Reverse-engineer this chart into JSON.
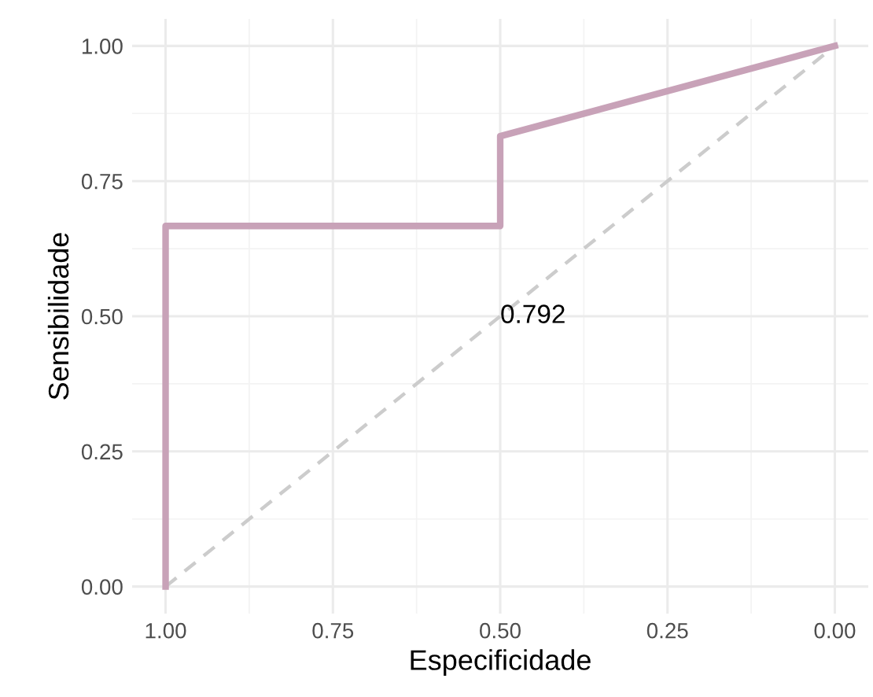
{
  "chart_data": {
    "type": "line",
    "xlabel": "Especificidade",
    "ylabel": "Sensibilidade",
    "series": [
      {
        "color": "#c8a2b8",
        "x": [
          1.0,
          1.0,
          0.5,
          0.5,
          0.0
        ],
        "values": [
          0.0,
          0.667,
          0.667,
          0.833,
          1.0
        ],
        "line_style": "solid"
      },
      {
        "color": "#cccccc",
        "x": [
          1.0,
          0.0
        ],
        "values": [
          0.0,
          1.0
        ],
        "line_style": "dashed"
      }
    ],
    "annotations": [
      {
        "text": "0.792",
        "x": 0.5,
        "y": 0.5
      }
    ],
    "xlim": [
      1.05,
      -0.05
    ],
    "ylim": [
      -0.05,
      1.05
    ],
    "xticks": [
      {
        "value": 1.0,
        "label": "1.00"
      },
      {
        "value": 0.75,
        "label": "0.75"
      },
      {
        "value": 0.5,
        "label": "0.50"
      },
      {
        "value": 0.25,
        "label": "0.25"
      },
      {
        "value": 0.0,
        "label": "0.00"
      }
    ],
    "yticks": [
      {
        "value": 0.0,
        "label": "0.00"
      },
      {
        "value": 0.25,
        "label": "0.25"
      },
      {
        "value": 0.5,
        "label": "0.50"
      },
      {
        "value": 0.75,
        "label": "0.75"
      },
      {
        "value": 1.0,
        "label": "1.00"
      }
    ],
    "grid": true,
    "legend": false
  }
}
